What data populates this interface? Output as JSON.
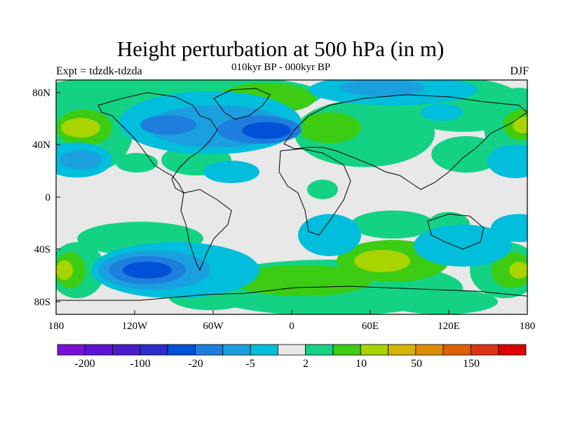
{
  "title": "Height perturbation at 500 hPa (in m)",
  "subtitle": "010kyr BP - 000kyr BP",
  "left_label": "Expt = tdzdk-tdzda",
  "right_label": "DJF",
  "x_ticks": [
    "180",
    "120W",
    "60W",
    "0",
    "60E",
    "120E",
    "180"
  ],
  "y_ticks": [
    "80N",
    "40N",
    "0",
    "40S",
    "80S"
  ],
  "colorbar": {
    "colors": [
      "#7a10d8",
      "#5e14d6",
      "#4a1ccc",
      "#2c2ccc",
      "#0050d8",
      "#1e7ede",
      "#1aa0de",
      "#00bedc",
      "#e8e8e8",
      "#14d284",
      "#3ccc14",
      "#a8d400",
      "#d4b400",
      "#de8c00",
      "#de6000",
      "#de3414",
      "#de0000"
    ],
    "labels": [
      "-200",
      "-100",
      "-20",
      "-5",
      "2",
      "10",
      "50",
      "150"
    ]
  },
  "chart_data": {
    "type": "map",
    "projection": "cylindrical equidistant",
    "variable": "500 hPa geopotential height difference (m)",
    "season": "DJF",
    "lon_range": [
      -180,
      180
    ],
    "lat_range": [
      -90,
      90
    ],
    "color_levels": [
      -200,
      -100,
      -20,
      -5,
      2,
      10,
      50,
      150
    ]
  }
}
